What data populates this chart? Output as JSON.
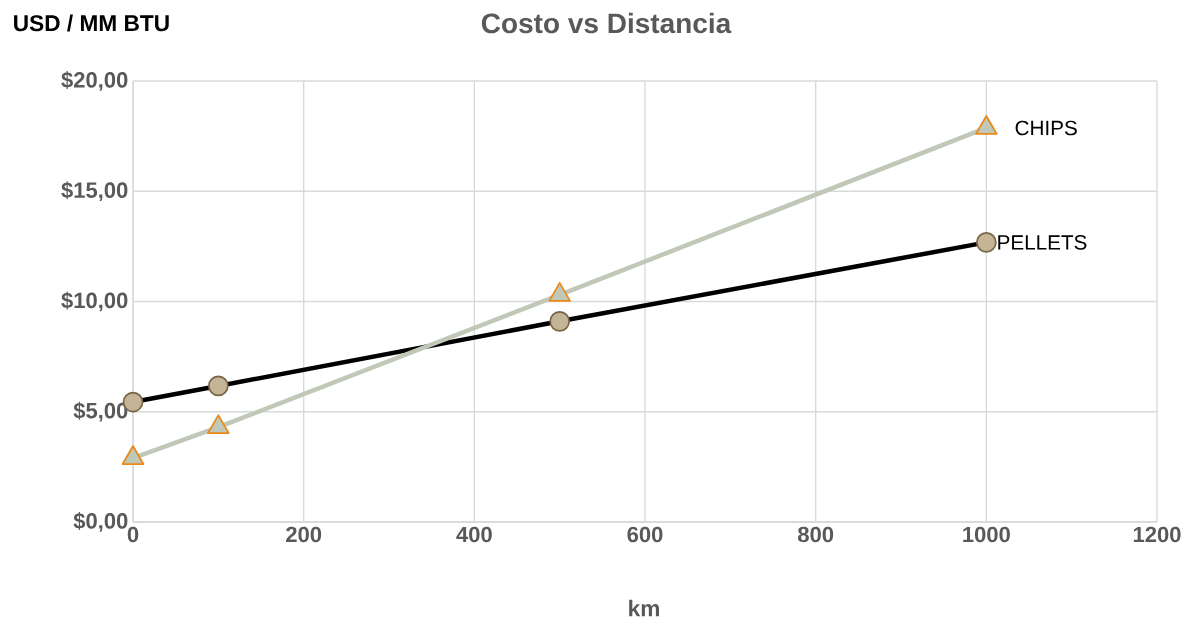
{
  "chart_data": {
    "type": "line",
    "title": "Costo vs Distancia",
    "xlabel": "km",
    "ylabel": "USD / MM BTU",
    "x": [
      0,
      100,
      500,
      1000
    ],
    "series": [
      {
        "name": "PELLETS",
        "color": "#000000",
        "marker": "circle",
        "values": [
          5.44,
          6.17,
          9.1,
          12.68
        ]
      },
      {
        "name": "CHIPS",
        "color": "#c0c8b8",
        "marker": "triangle",
        "values": [
          2.9,
          4.3,
          10.3,
          17.87
        ]
      }
    ],
    "xlim": [
      0,
      1200
    ],
    "xticks": [
      0,
      200,
      400,
      600,
      800,
      1000,
      1200
    ],
    "ylim": [
      0,
      20
    ],
    "yticks": [
      {
        "value": 0,
        "label": "$0,00"
      },
      {
        "value": 5,
        "label": "$5,00"
      },
      {
        "value": 10,
        "label": "$10,00"
      },
      {
        "value": 15,
        "label": "$15,00"
      },
      {
        "value": 20,
        "label": "$20,00"
      }
    ],
    "grid": true
  }
}
